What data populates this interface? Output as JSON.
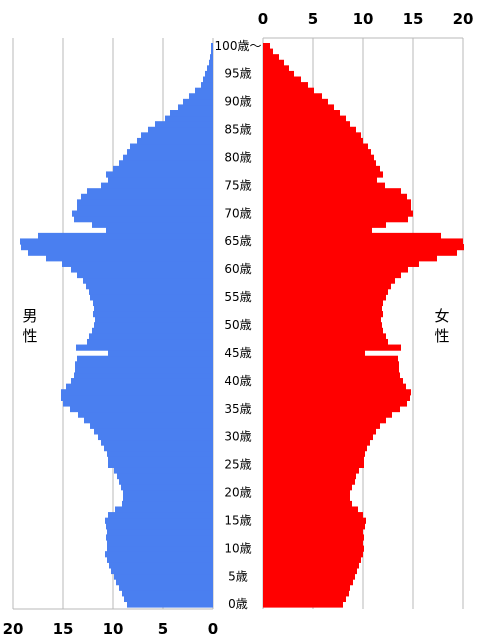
{
  "chart_data": {
    "type": "bar",
    "orientation": "horizontal",
    "title": "",
    "xlabel": "",
    "ylabel": "",
    "age_labels": [
      "0歳",
      "5歳",
      "10歳",
      "15歳",
      "20歳",
      "25歳",
      "30歳",
      "35歳",
      "40歳",
      "45歳",
      "50歳",
      "55歳",
      "60歳",
      "65歳",
      "70歳",
      "75歳",
      "80歳",
      "85歳",
      "90歳",
      "95歳",
      "100歳～"
    ],
    "x_ticks": [
      "0",
      "5",
      "10",
      "15",
      "20"
    ],
    "x_range": [
      0,
      20
    ],
    "side_labels": {
      "left": [
        "男",
        "性"
      ],
      "right": [
        "女",
        "性"
      ]
    },
    "truncated_right_label": "",
    "series": [
      {
        "color": "#4a7ff0",
        "side": "left",
        "values": [
          8.6,
          8.9,
          9.1,
          9.4,
          9.7,
          9.9,
          10.2,
          10.4,
          10.6,
          10.8,
          10.6,
          10.6,
          10.7,
          10.6,
          10.7,
          10.8,
          10.5,
          9.8,
          9.1,
          9.0,
          9.0,
          9.2,
          9.4,
          9.6,
          9.9,
          10.5,
          10.5,
          10.6,
          10.9,
          11.2,
          11.5,
          11.9,
          12.3,
          12.9,
          13.5,
          14.3,
          15.0,
          15.2,
          15.2,
          14.7,
          14.2,
          13.9,
          13.8,
          13.8,
          13.6,
          10.5,
          13.7,
          12.6,
          12.4,
          12.1,
          11.9,
          11.8,
          12.0,
          11.9,
          12.0,
          12.3,
          12.4,
          12.7,
          13.0,
          13.6,
          14.2,
          15.1,
          16.7,
          18.5,
          19.2,
          19.3,
          17.5,
          10.7,
          12.1,
          13.9,
          14.1,
          13.6,
          13.6,
          13.2,
          12.6,
          11.2,
          10.5,
          10.7,
          10.0,
          9.4,
          9.0,
          8.6,
          8.3,
          7.6,
          7.2,
          6.5,
          5.8,
          4.8,
          4.3,
          3.5,
          3.0,
          2.4,
          1.8,
          1.2,
          1.0,
          0.8,
          0.6,
          0.4,
          0.3,
          0.2,
          0.2
        ]
      },
      {
        "color": "#ff0000",
        "side": "right",
        "values": [
          8.0,
          8.3,
          8.6,
          8.7,
          9.0,
          9.2,
          9.4,
          9.6,
          9.8,
          10.0,
          10.1,
          10.0,
          10.1,
          10.0,
          10.2,
          10.3,
          10.0,
          9.5,
          8.9,
          8.7,
          8.7,
          8.9,
          9.2,
          9.3,
          9.6,
          10.1,
          10.1,
          10.2,
          10.4,
          10.7,
          11.0,
          11.3,
          11.7,
          12.3,
          12.9,
          13.7,
          14.4,
          14.7,
          14.8,
          14.3,
          14.0,
          13.7,
          13.6,
          13.6,
          13.5,
          10.2,
          13.8,
          12.5,
          12.3,
          12.0,
          11.9,
          11.8,
          12.0,
          11.9,
          12.0,
          12.3,
          12.5,
          12.8,
          13.2,
          13.8,
          14.5,
          15.6,
          17.4,
          19.4,
          20.1,
          20.0,
          17.8,
          10.9,
          12.3,
          14.5,
          15.0,
          14.8,
          14.8,
          14.4,
          13.8,
          12.2,
          11.4,
          12.0,
          11.7,
          11.3,
          11.1,
          10.8,
          10.5,
          10.0,
          9.8,
          9.3,
          8.7,
          8.3,
          7.7,
          7.1,
          6.5,
          5.9,
          5.1,
          4.5,
          3.8,
          3.1,
          2.6,
          2.1,
          1.6,
          1.0,
          0.7
        ]
      }
    ]
  }
}
